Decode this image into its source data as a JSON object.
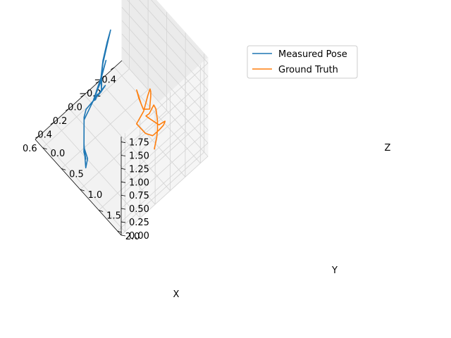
{
  "chart_data": {
    "type": "line",
    "projection": "3d",
    "title": "",
    "xlabel": "X",
    "ylabel": "Y",
    "zlabel": "Z",
    "xlim": [
      -0.5,
      0.65
    ],
    "ylim": [
      -0.2,
      2.1
    ],
    "zlim": [
      0.0,
      1.85
    ],
    "xticks": [
      -0.4,
      -0.2,
      0.0,
      0.2,
      0.4,
      0.6
    ],
    "xtick_labels": [
      "−0.4",
      "−0.2",
      "0.0",
      "0.2",
      "0.4",
      "0.6"
    ],
    "yticks": [
      0.0,
      0.5,
      1.0,
      1.5,
      2.0
    ],
    "ytick_labels": [
      "0.0",
      "0.5",
      "1.0",
      "1.5",
      "2.0"
    ],
    "zticks": [
      0.0,
      0.25,
      0.5,
      0.75,
      1.0,
      1.25,
      1.5,
      1.75
    ],
    "ztick_labels": [
      "0.00",
      "0.25",
      "0.50",
      "0.75",
      "1.00",
      "1.25",
      "1.50",
      "1.75"
    ],
    "grid": true,
    "legend": {
      "placement": "top-right"
    },
    "series": [
      {
        "name": "Measured Pose",
        "color": "#1f77b4",
        "points": [
          [
            -0.02,
            0.0,
            0.02
          ],
          [
            -0.18,
            0.0,
            0.1
          ],
          [
            -0.12,
            0.0,
            0.05
          ],
          [
            -0.02,
            0.0,
            0.02
          ],
          [
            -0.1,
            0.05,
            0.4
          ],
          [
            -0.14,
            0.1,
            0.7
          ],
          [
            -0.06,
            0.15,
            0.55
          ],
          [
            -0.03,
            0.2,
            0.35
          ],
          [
            -0.05,
            0.15,
            0.55
          ],
          [
            -0.1,
            0.1,
            0.75
          ],
          [
            -0.18,
            0.05,
            0.95
          ],
          [
            -0.25,
            0.0,
            1.05
          ],
          [
            -0.18,
            0.05,
            0.9
          ],
          [
            -0.1,
            0.1,
            0.7
          ],
          [
            -0.04,
            0.15,
            0.45
          ],
          [
            -0.02,
            0.0,
            0.02
          ],
          [
            0.1,
            0.05,
            0.05
          ],
          [
            0.2,
            0.2,
            0.15
          ],
          [
            0.35,
            0.5,
            0.2
          ],
          [
            0.5,
            0.8,
            0.35
          ],
          [
            0.55,
            0.95,
            0.4
          ],
          [
            0.45,
            0.7,
            0.3
          ],
          [
            0.55,
            1.0,
            0.45
          ],
          [
            0.6,
            1.05,
            0.38
          ],
          [
            0.4,
            0.6,
            0.22
          ],
          [
            0.2,
            0.2,
            0.1
          ],
          [
            -0.02,
            0.0,
            0.02
          ],
          [
            -0.1,
            -0.05,
            0.0
          ],
          [
            -0.05,
            0.0,
            0.0
          ],
          [
            -0.02,
            0.0,
            0.02
          ]
        ]
      },
      {
        "name": "Ground Truth",
        "color": "#ff7f0e",
        "points": [
          [
            0.02,
            1.72,
            0.5
          ],
          [
            0.04,
            1.76,
            0.58
          ],
          [
            0.03,
            1.8,
            0.8
          ],
          [
            0.04,
            1.84,
            1.0
          ],
          [
            0.05,
            1.86,
            1.2
          ],
          [
            0.04,
            1.8,
            1.35
          ],
          [
            0.02,
            1.7,
            1.32
          ],
          [
            -0.02,
            1.5,
            0.95
          ],
          [
            -0.05,
            1.35,
            0.75
          ],
          [
            -0.04,
            1.45,
            0.8
          ],
          [
            0.0,
            1.8,
            1.0
          ],
          [
            0.02,
            2.0,
            1.25
          ],
          [
            0.06,
            2.08,
            1.35
          ],
          [
            0.04,
            2.0,
            1.2
          ],
          [
            0.0,
            1.8,
            0.9
          ],
          [
            -0.04,
            1.55,
            0.55
          ],
          [
            -0.02,
            1.4,
            0.5
          ],
          [
            0.0,
            1.2,
            0.55
          ],
          [
            -0.02,
            1.35,
            0.88
          ],
          [
            -0.04,
            1.42,
            1.2
          ],
          [
            -0.03,
            1.5,
            1.4
          ],
          [
            0.0,
            1.58,
            1.45
          ],
          [
            0.02,
            1.62,
            1.42
          ],
          [
            0.0,
            1.55,
            1.1
          ],
          [
            -0.04,
            1.3,
            0.85
          ],
          [
            -0.08,
            1.1,
            0.85
          ],
          [
            -0.1,
            1.0,
            0.9
          ],
          [
            -0.06,
            1.2,
            0.85
          ]
        ]
      }
    ]
  }
}
